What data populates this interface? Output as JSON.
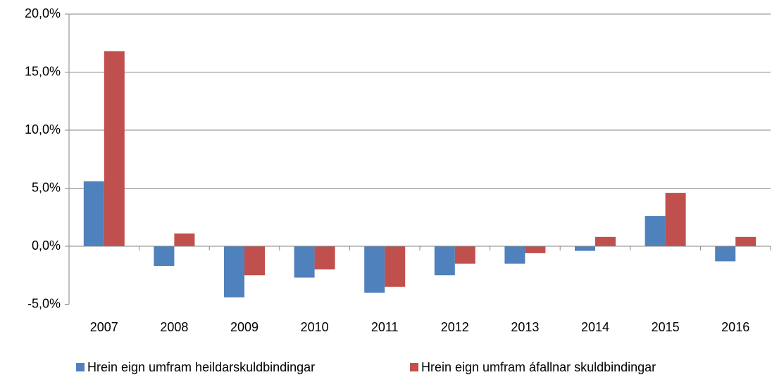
{
  "chart_data": {
    "type": "bar",
    "categories": [
      "2007",
      "2008",
      "2009",
      "2010",
      "2011",
      "2012",
      "2013",
      "2014",
      "2015",
      "2016"
    ],
    "series": [
      {
        "name": "Hrein eign umfram heildarskuldbindingar",
        "color": "#4f81bd",
        "values": [
          5.6,
          -1.7,
          -4.4,
          -2.7,
          -4.0,
          -2.5,
          -1.5,
          -0.4,
          2.6,
          -1.3
        ]
      },
      {
        "name": "Hrein eign umfram áfallnar skuldbindingar",
        "color": "#c0504d",
        "values": [
          16.8,
          1.1,
          -2.5,
          -2.0,
          -3.5,
          -1.5,
          -0.6,
          0.8,
          4.6,
          0.8
        ]
      }
    ],
    "ylim": [
      -5,
      20
    ],
    "yticks": [
      {
        "value": -5,
        "label": "-5,0%"
      },
      {
        "value": 0,
        "label": "0,0%"
      },
      {
        "value": 5,
        "label": "5,0%"
      },
      {
        "value": 10,
        "label": "10,0%"
      },
      {
        "value": 15,
        "label": "15,0%"
      },
      {
        "value": 20,
        "label": "20,0%"
      }
    ],
    "grid": true,
    "legend": "bottom"
  }
}
